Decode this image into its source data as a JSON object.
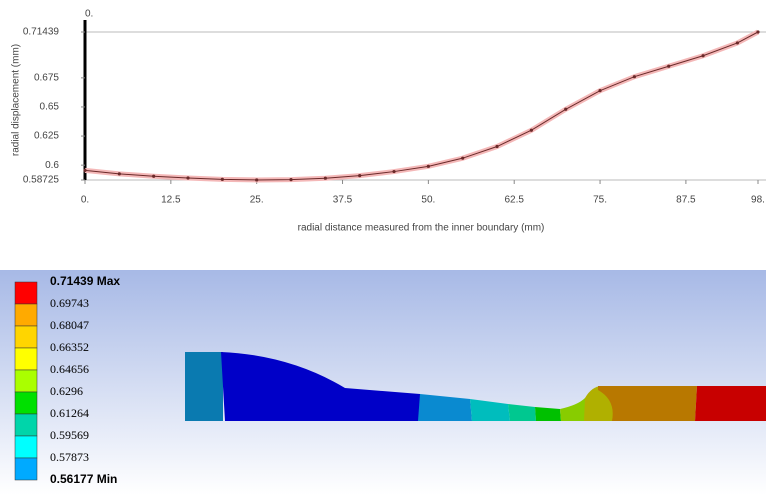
{
  "chart_data": {
    "type": "line",
    "y_label": "radial displacement (mm)",
    "x_label": "radial distance measured from the inner boundary (mm)",
    "annotation": "0.",
    "x": [
      0,
      5,
      10,
      15,
      20,
      25,
      30,
      35,
      40,
      45,
      50,
      55,
      60,
      65,
      70,
      75,
      80,
      85,
      90,
      95,
      98
    ],
    "values": [
      0.5955,
      0.5925,
      0.5905,
      0.589,
      0.5878,
      0.5873,
      0.5876,
      0.5888,
      0.591,
      0.5945,
      0.599,
      0.606,
      0.616,
      0.63,
      0.648,
      0.664,
      0.676,
      0.685,
      0.694,
      0.705,
      0.71439
    ],
    "color": "#6b2a2a",
    "xlim": [
      0,
      98
    ],
    "xticks": [
      {
        "value": 0,
        "label": "0."
      },
      12.5,
      {
        "value": 25,
        "label": "25."
      },
      37.5,
      {
        "value": 50,
        "label": "50."
      },
      62.5,
      {
        "value": 75,
        "label": "75."
      },
      87.5,
      {
        "value": 98,
        "label": "98."
      }
    ],
    "ylim": [
      0.58725,
      0.71439
    ],
    "yticks": [
      0.58725,
      0.6,
      0.625,
      0.65,
      0.675,
      0.71439
    ],
    "grid": false
  },
  "contour": {
    "legend": [
      "0.71439 Max",
      "0.69743",
      "0.68047",
      "0.66352",
      "0.64656",
      "0.6296",
      "0.61264",
      "0.59569",
      "0.57873",
      "0.56177 Min"
    ],
    "colors": [
      "#ff0000",
      "#ffaa00",
      "#ffd500",
      "#ffff00",
      "#aaff00",
      "#00e000",
      "#00d5aa",
      "#00ffff",
      "#00aaff",
      "#0000ff"
    ]
  }
}
